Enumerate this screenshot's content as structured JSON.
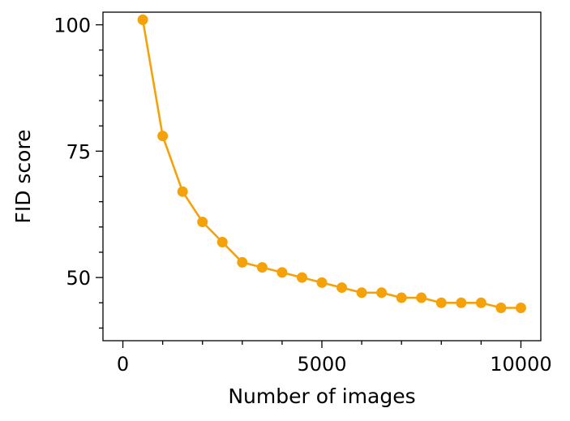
{
  "chart_data": {
    "type": "line",
    "title": "",
    "xlabel": "Number of images",
    "ylabel": "FID score",
    "xlim": [
      -500,
      10500
    ],
    "ylim": [
      37.5,
      102.5
    ],
    "grid": false,
    "x_ticks_major": [
      0,
      5000,
      10000
    ],
    "x_tick_labels": [
      "0",
      "5000",
      "10000"
    ],
    "x_ticks_minor": [
      1000,
      2000,
      3000,
      4000,
      6000,
      7000,
      8000,
      9000
    ],
    "y_ticks_major": [
      50,
      75,
      100
    ],
    "y_tick_labels": [
      "50",
      "75",
      "100"
    ],
    "y_ticks_minor": [
      40,
      45,
      55,
      60,
      65,
      70,
      80,
      85,
      90,
      95
    ],
    "series": [
      {
        "color": "#f5a20a",
        "marker": "circle",
        "x": [
          500,
          1000,
          1500,
          2000,
          2500,
          3000,
          3500,
          4000,
          4500,
          5000,
          5500,
          6000,
          6500,
          7000,
          7500,
          8000,
          8500,
          9000,
          9500,
          10000
        ],
        "y": [
          101,
          78,
          67,
          61,
          57,
          53,
          52,
          51,
          50,
          49,
          48,
          47,
          47,
          46,
          46,
          45,
          45,
          45,
          44,
          44
        ]
      }
    ]
  }
}
